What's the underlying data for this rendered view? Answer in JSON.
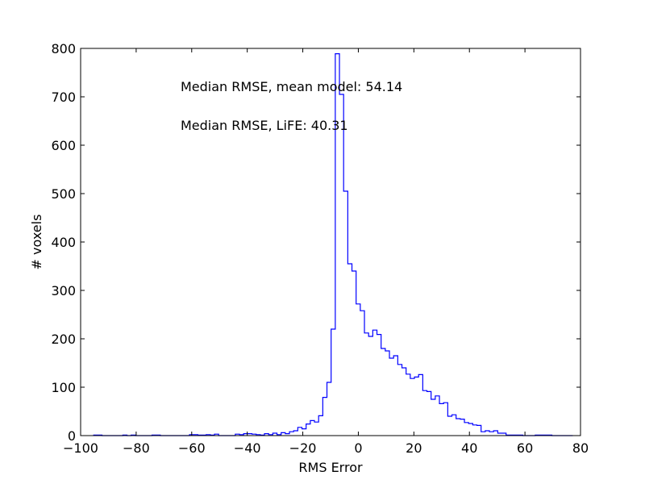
{
  "chart_data": {
    "type": "histogram",
    "xlabel": "RMS Error",
    "ylabel": "# voxels",
    "xlim": [
      -100,
      80
    ],
    "ylim": [
      0,
      800
    ],
    "x_ticks": [
      -100,
      -80,
      -60,
      -40,
      -20,
      0,
      20,
      40,
      60,
      80
    ],
    "y_ticks": [
      0,
      100,
      200,
      300,
      400,
      500,
      600,
      700,
      800
    ],
    "x_tick_labels": [
      "−100",
      "−80",
      "−60",
      "−40",
      "−20",
      "0",
      "20",
      "40",
      "60",
      "80"
    ],
    "y_tick_labels": [
      "0",
      "100",
      "200",
      "300",
      "400",
      "500",
      "600",
      "700",
      "800"
    ],
    "annotations": [
      "Median RMSE, mean model: 54.14",
      "Median RMSE, LiFE: 40.31"
    ],
    "color": "#0000ff",
    "grid": false,
    "bin_edges": [
      -95.3,
      -93.8,
      -92.3,
      -90.8,
      -89.3,
      -87.8,
      -86.3,
      -84.8,
      -83.3,
      -81.8,
      -80.3,
      -78.8,
      -77.3,
      -75.8,
      -74.3,
      -72.8,
      -71.3,
      -69.8,
      -68.3,
      -66.8,
      -65.3,
      -63.8,
      -62.3,
      -60.8,
      -59.3,
      -57.8,
      -56.3,
      -54.8,
      -53.3,
      -51.8,
      -50.3,
      -48.8,
      -47.3,
      -45.8,
      -44.3,
      -42.8,
      -41.3,
      -39.8,
      -38.3,
      -36.8,
      -35.3,
      -33.8,
      -32.3,
      -30.8,
      -29.3,
      -27.8,
      -26.3,
      -24.8,
      -23.3,
      -21.8,
      -20.3,
      -18.8,
      -17.3,
      -15.8,
      -14.3,
      -12.8,
      -11.3,
      -9.8,
      -8.3,
      -6.8,
      -5.3,
      -3.8,
      -2.3,
      -0.8,
      0.7,
      2.2,
      3.7,
      5.2,
      6.7,
      8.2,
      9.7,
      11.2,
      12.7,
      14.2,
      15.7,
      17.2,
      18.7,
      20.2,
      21.7,
      23.2,
      24.7,
      26.2,
      27.7,
      29.2,
      30.7,
      32.2,
      33.7,
      35.2,
      36.7,
      38.2,
      39.7,
      41.2,
      42.7,
      44.2,
      45.7,
      47.2,
      48.7,
      50.2,
      51.7,
      53.2,
      54.7,
      56.2,
      57.7,
      59.2,
      60.7,
      62.2,
      63.7,
      65.2,
      66.7,
      68.2,
      69.7,
      71.2,
      72.7,
      74.2,
      75.7,
      77.2
    ],
    "counts": [
      1,
      1,
      0,
      0,
      0,
      0,
      0,
      1,
      0,
      1,
      0,
      0,
      0,
      0,
      1,
      1,
      0,
      0,
      0,
      0,
      0,
      0,
      0,
      2,
      2,
      1,
      1,
      2,
      1,
      3,
      0,
      0,
      0,
      0,
      3,
      2,
      4,
      4,
      3,
      2,
      1,
      4,
      2,
      5,
      2,
      6,
      4,
      8,
      10,
      17,
      14,
      24,
      31,
      28,
      41,
      79,
      110,
      220,
      789,
      705,
      505,
      355,
      340,
      272,
      258,
      212,
      205,
      218,
      209,
      180,
      175,
      160,
      165,
      147,
      140,
      127,
      118,
      121,
      126,
      93,
      91,
      75,
      82,
      66,
      68,
      40,
      43,
      35,
      34,
      27,
      25,
      22,
      21,
      8,
      10,
      8,
      10,
      5,
      5,
      1,
      1,
      1,
      1,
      0,
      0,
      0,
      1,
      1,
      1,
      1,
      0,
      0,
      0,
      0,
      0,
      0
    ]
  }
}
